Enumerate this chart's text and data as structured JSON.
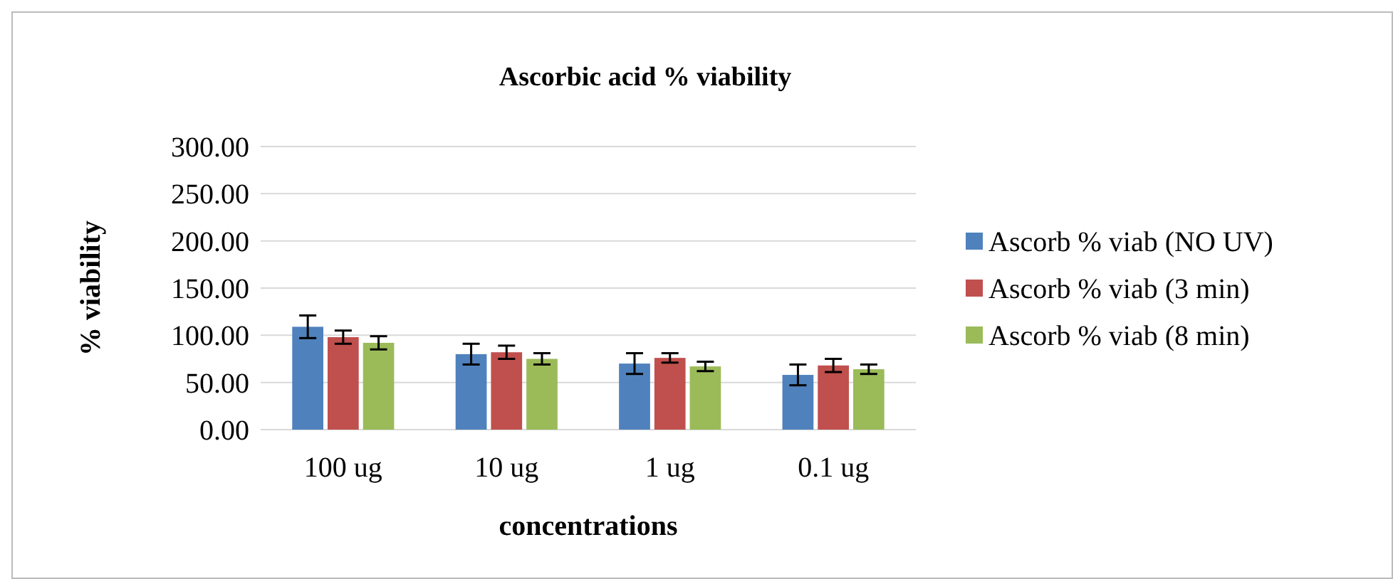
{
  "chart_data": {
    "type": "bar",
    "title": "Ascorbic acid % viability",
    "xlabel": "concentrations",
    "ylabel": "% viability",
    "categories": [
      "100 ug",
      "10 ug",
      "1 ug",
      "0.1 ug"
    ],
    "series": [
      {
        "name": "Ascorb % viab (NO UV)",
        "color": "#4f81bd",
        "values": [
          109,
          80,
          70,
          58
        ],
        "errors": [
          12,
          11,
          11,
          11
        ]
      },
      {
        "name": "Ascorb % viab (3 min)",
        "color": "#c0504d",
        "values": [
          98,
          82,
          76,
          68
        ],
        "errors": [
          7,
          7,
          5,
          7
        ]
      },
      {
        "name": "Ascorb % viab (8 min)",
        "color": "#9bbb59",
        "values": [
          92,
          75,
          67,
          64
        ],
        "errors": [
          7,
          6,
          5,
          5
        ]
      }
    ],
    "ylim": [
      0,
      300
    ],
    "yticks": [
      {
        "value": 0,
        "label": "0.00"
      },
      {
        "value": 50,
        "label": "50.00"
      },
      {
        "value": 100,
        "label": "100.00"
      },
      {
        "value": 150,
        "label": "150.00"
      },
      {
        "value": 200,
        "label": "200.00"
      },
      {
        "value": 250,
        "label": "250.00"
      },
      {
        "value": 300,
        "label": "300.00"
      }
    ],
    "grid": "y",
    "legend": "right"
  }
}
